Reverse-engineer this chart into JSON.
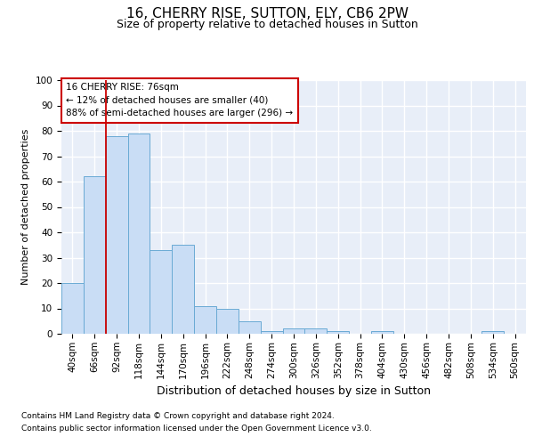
{
  "title1": "16, CHERRY RISE, SUTTON, ELY, CB6 2PW",
  "title2": "Size of property relative to detached houses in Sutton",
  "xlabel": "Distribution of detached houses by size in Sutton",
  "ylabel": "Number of detached properties",
  "categories": [
    "40sqm",
    "66sqm",
    "92sqm",
    "118sqm",
    "144sqm",
    "170sqm",
    "196sqm",
    "222sqm",
    "248sqm",
    "274sqm",
    "300sqm",
    "326sqm",
    "352sqm",
    "378sqm",
    "404sqm",
    "430sqm",
    "456sqm",
    "482sqm",
    "508sqm",
    "534sqm",
    "560sqm"
  ],
  "values": [
    20,
    62,
    78,
    79,
    33,
    35,
    11,
    10,
    5,
    1,
    2,
    2,
    1,
    0,
    1,
    0,
    0,
    0,
    0,
    1,
    0
  ],
  "bar_color": "#c9ddf5",
  "bar_edge_color": "#6aaad4",
  "vline_x": 1.5,
  "vline_color": "#cc0000",
  "annotation_line1": "16 CHERRY RISE: 76sqm",
  "annotation_line2": "← 12% of detached houses are smaller (40)",
  "annotation_line3": "88% of semi-detached houses are larger (296) →",
  "ann_box_facecolor": "#ffffff",
  "ann_box_edgecolor": "#cc0000",
  "ylim": [
    0,
    100
  ],
  "yticks": [
    0,
    10,
    20,
    30,
    40,
    50,
    60,
    70,
    80,
    90,
    100
  ],
  "footer1": "Contains HM Land Registry data © Crown copyright and database right 2024.",
  "footer2": "Contains public sector information licensed under the Open Government Licence v3.0.",
  "plot_bg_color": "#e8eef8",
  "fig_bg_color": "#ffffff",
  "title1_fontsize": 11,
  "title2_fontsize": 9,
  "ylabel_fontsize": 8,
  "xlabel_fontsize": 9,
  "tick_fontsize": 7.5,
  "footer_fontsize": 6.5
}
